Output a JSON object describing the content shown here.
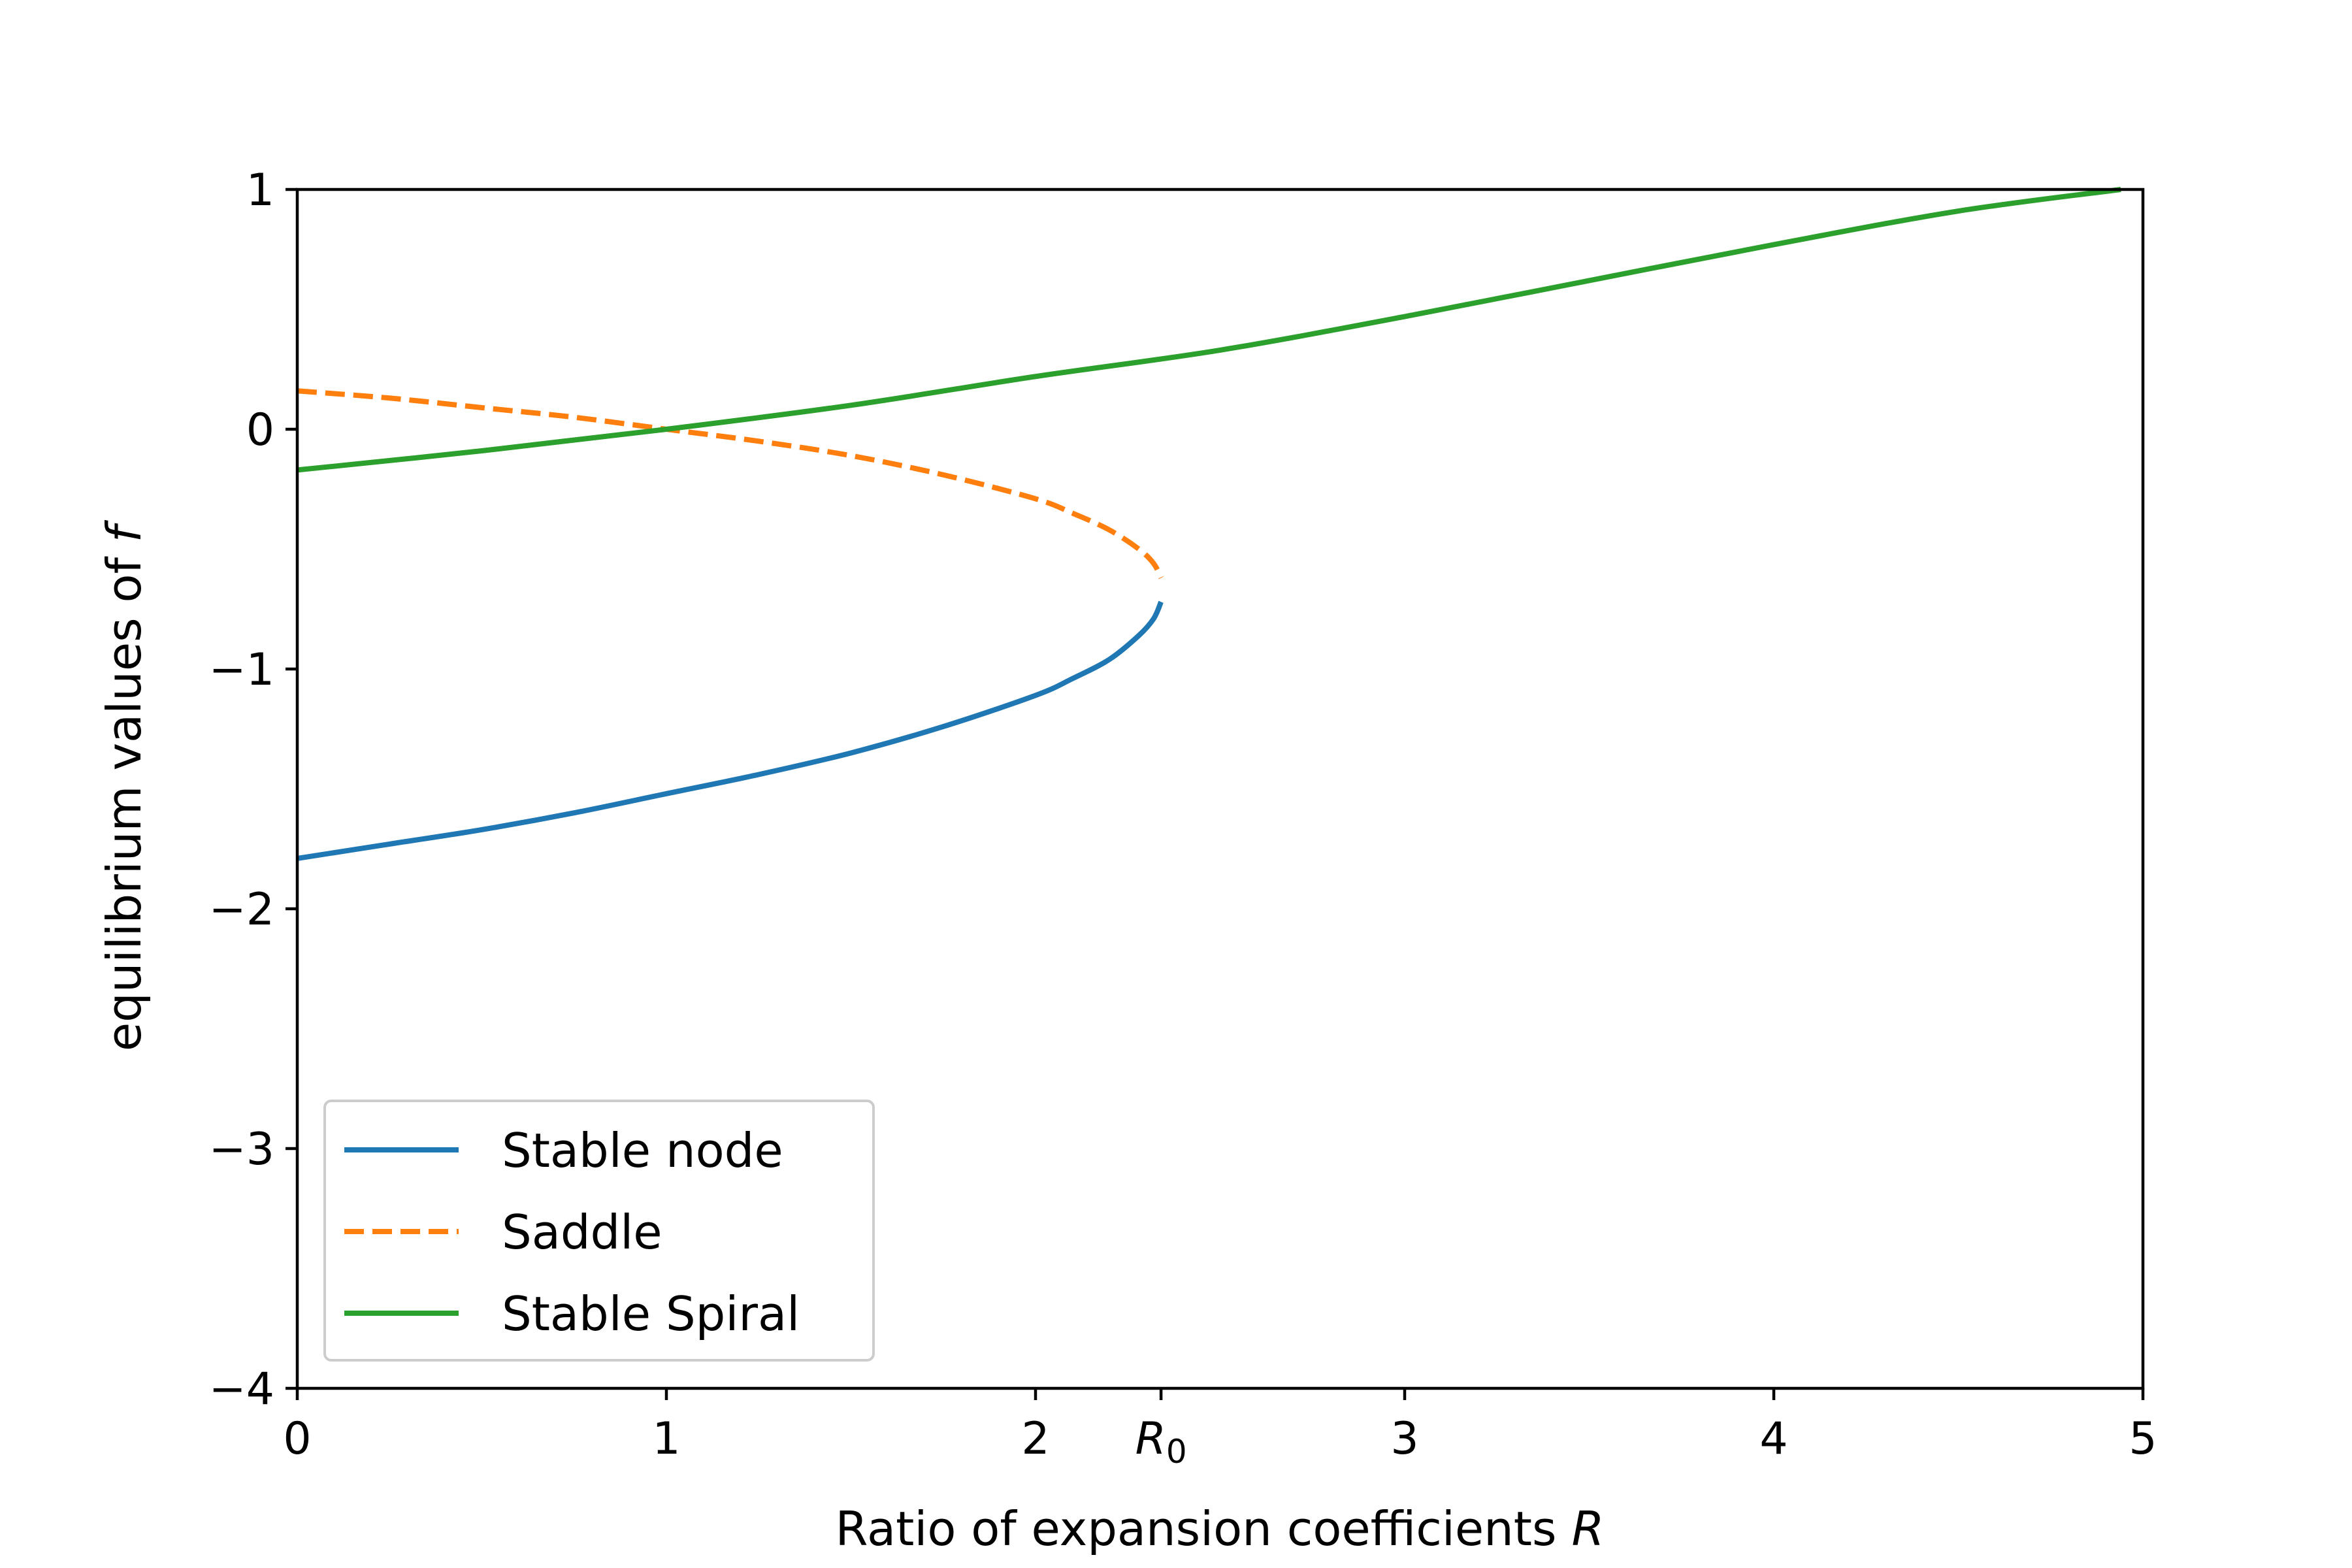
{
  "chart_data": {
    "type": "line",
    "xlabel": "Ratio of expansion coefficients",
    "xlabel_var": "R",
    "ylabel": "equilibrium values of",
    "ylabel_var": "f",
    "xlim": [
      0,
      5
    ],
    "ylim": [
      -4,
      1
    ],
    "grid": false,
    "legend_position": "lower-left",
    "x_ticks": [
      {
        "value": 0,
        "label": "0"
      },
      {
        "value": 1,
        "label": "1"
      },
      {
        "value": 2,
        "label": "2"
      },
      {
        "value": 2.34,
        "label": "R",
        "sub": "0"
      },
      {
        "value": 3,
        "label": "3"
      },
      {
        "value": 4,
        "label": "4"
      },
      {
        "value": 5,
        "label": "5"
      }
    ],
    "y_ticks": [
      {
        "value": 1,
        "label": "1"
      },
      {
        "value": 0,
        "label": "0"
      },
      {
        "value": -1,
        "label": "−1"
      },
      {
        "value": -2,
        "label": "−2"
      },
      {
        "value": -3,
        "label": "−3"
      },
      {
        "value": -4,
        "label": "−4"
      }
    ],
    "series": [
      {
        "name": "Stable node",
        "color": "#1f77b4",
        "dash": "solid",
        "points": [
          [
            0,
            -1.79
          ],
          [
            0.25,
            -1.73
          ],
          [
            0.5,
            -1.67
          ],
          [
            0.75,
            -1.6
          ],
          [
            1.0,
            -1.52
          ],
          [
            1.25,
            -1.44
          ],
          [
            1.5,
            -1.35
          ],
          [
            1.75,
            -1.24
          ],
          [
            2.0,
            -1.11
          ],
          [
            2.1,
            -1.04
          ],
          [
            2.2,
            -0.96
          ],
          [
            2.28,
            -0.86
          ],
          [
            2.32,
            -0.79
          ],
          [
            2.34,
            -0.72
          ]
        ]
      },
      {
        "name": "Saddle",
        "color": "#ff7f0e",
        "dash": "dashed",
        "points": [
          [
            0,
            0.16
          ],
          [
            0.25,
            0.13
          ],
          [
            0.5,
            0.09
          ],
          [
            0.75,
            0.05
          ],
          [
            1.0,
            0.0
          ],
          [
            1.25,
            -0.05
          ],
          [
            1.5,
            -0.11
          ],
          [
            1.75,
            -0.19
          ],
          [
            2.0,
            -0.29
          ],
          [
            2.1,
            -0.35
          ],
          [
            2.2,
            -0.42
          ],
          [
            2.28,
            -0.5
          ],
          [
            2.32,
            -0.56
          ],
          [
            2.34,
            -0.62
          ]
        ]
      },
      {
        "name": "Stable Spiral",
        "color": "#2ca02c",
        "dash": "solid",
        "points": [
          [
            0,
            -0.17
          ],
          [
            0.5,
            -0.09
          ],
          [
            1.0,
            0.0
          ],
          [
            1.5,
            0.1
          ],
          [
            2.0,
            0.22
          ],
          [
            2.5,
            0.33
          ],
          [
            3.0,
            0.47
          ],
          [
            3.5,
            0.62
          ],
          [
            4.0,
            0.77
          ],
          [
            4.5,
            0.91
          ],
          [
            4.94,
            1.0
          ]
        ]
      }
    ]
  }
}
